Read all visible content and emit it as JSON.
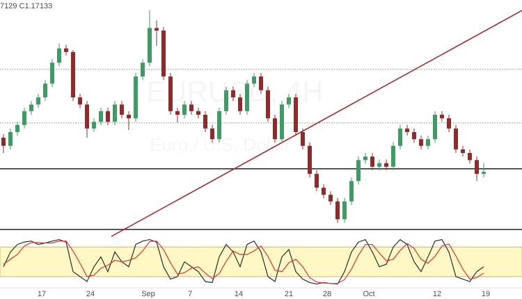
{
  "chart_data": {
    "type": "candlestick",
    "header": "7129 C1.17133",
    "watermark": "EURUSD, 4H",
    "watermark_sub": "Euro / U.S. Dollar",
    "ylim": [
      1.16,
      1.205
    ],
    "xlim": [
      -0.5,
      74.5
    ],
    "up_color": "#3f9a63",
    "down_color": "#8e2b2b",
    "levels": [
      {
        "value": 1.1719,
        "style": "solid",
        "color": "#222222"
      },
      {
        "value": 1.1914,
        "style": "dotted",
        "color": "#888888"
      },
      {
        "value": 1.1809,
        "style": "dotted",
        "color": "#888888"
      }
    ],
    "xticks": [
      {
        "value": 5.5,
        "label": "17"
      },
      {
        "value": 12.5,
        "label": "24"
      },
      {
        "value": 20.8,
        "label": "Sep"
      },
      {
        "value": 26.8,
        "label": "7"
      },
      {
        "value": 33.8,
        "label": "14"
      },
      {
        "value": 41,
        "label": "21"
      },
      {
        "value": 46.5,
        "label": "28"
      },
      {
        "value": 52.5,
        "label": "Oct"
      },
      {
        "value": 62.3,
        "label": "12"
      },
      {
        "value": 69.3,
        "label": "19"
      }
    ],
    "candles": [
      [
        1.178,
        1.1787,
        1.175,
        1.1764
      ],
      [
        1.1764,
        1.1798,
        1.1757,
        1.1791
      ],
      [
        1.1791,
        1.1812,
        1.1784,
        1.1805
      ],
      [
        1.1805,
        1.1839,
        1.1798,
        1.1832
      ],
      [
        1.1832,
        1.1852,
        1.1825,
        1.1845
      ],
      [
        1.1845,
        1.1866,
        1.1838,
        1.1859
      ],
      [
        1.1859,
        1.1893,
        1.1852,
        1.1886
      ],
      [
        1.1886,
        1.1934,
        1.1879,
        1.1927
      ],
      [
        1.1927,
        1.1965,
        1.192,
        1.1955
      ],
      [
        1.1955,
        1.1962,
        1.1941,
        1.1948
      ],
      [
        1.1948,
        1.1952,
        1.1852,
        1.1859
      ],
      [
        1.1859,
        1.1866,
        1.1838,
        1.1845
      ],
      [
        1.1845,
        1.1852,
        1.178,
        1.1798
      ],
      [
        1.1798,
        1.1818,
        1.1791,
        1.1811
      ],
      [
        1.1811,
        1.1839,
        1.1804,
        1.1832
      ],
      [
        1.1832,
        1.1839,
        1.1804,
        1.1811
      ],
      [
        1.1811,
        1.1852,
        1.1804,
        1.1845
      ],
      [
        1.1845,
        1.1852,
        1.1818,
        1.1825
      ],
      [
        1.1825,
        1.1832,
        1.1795,
        1.1818
      ],
      [
        1.1818,
        1.1907,
        1.1811,
        1.19
      ],
      [
        1.19,
        1.1934,
        1.1893,
        1.1927
      ],
      [
        1.1927,
        1.203,
        1.192,
        1.1995
      ],
      [
        1.1995,
        1.201,
        1.196,
        1.199
      ],
      [
        1.199,
        1.1997,
        1.1893,
        1.19
      ],
      [
        1.19,
        1.1907,
        1.1825,
        1.1832
      ],
      [
        1.1832,
        1.1839,
        1.181,
        1.1825
      ],
      [
        1.1825,
        1.1852,
        1.1818,
        1.1845
      ],
      [
        1.1845,
        1.1852,
        1.1825,
        1.1832
      ],
      [
        1.1832,
        1.1839,
        1.1818,
        1.1825
      ],
      [
        1.1825,
        1.1832,
        1.1791,
        1.1798
      ],
      [
        1.1798,
        1.1805,
        1.177,
        1.1777
      ],
      [
        1.1777,
        1.1839,
        1.177,
        1.1832
      ],
      [
        1.1832,
        1.188,
        1.1825,
        1.1873
      ],
      [
        1.1873,
        1.188,
        1.1852,
        1.1859
      ],
      [
        1.1859,
        1.1866,
        1.1825,
        1.1832
      ],
      [
        1.1832,
        1.1893,
        1.1825,
        1.1886
      ],
      [
        1.1886,
        1.1907,
        1.1879,
        1.19
      ],
      [
        1.19,
        1.1907,
        1.1866,
        1.1873
      ],
      [
        1.1873,
        1.188,
        1.1811,
        1.1818
      ],
      [
        1.1818,
        1.1825,
        1.177,
        1.1777
      ],
      [
        1.1777,
        1.1852,
        1.177,
        1.1845
      ],
      [
        1.1845,
        1.1866,
        1.1838,
        1.1859
      ],
      [
        1.1859,
        1.1866,
        1.1784,
        1.1791
      ],
      [
        1.1791,
        1.1798,
        1.1757,
        1.1764
      ],
      [
        1.1764,
        1.1771,
        1.1702,
        1.1709
      ],
      [
        1.1709,
        1.1716,
        1.1675,
        1.1682
      ],
      [
        1.1682,
        1.1689,
        1.1661,
        1.1668
      ],
      [
        1.1668,
        1.1675,
        1.1648,
        1.1655
      ],
      [
        1.1655,
        1.1662,
        1.1613,
        1.162
      ],
      [
        1.162,
        1.1662,
        1.1613,
        1.1655
      ],
      [
        1.1655,
        1.1702,
        1.1648,
        1.1695
      ],
      [
        1.1695,
        1.1743,
        1.1688,
        1.1736
      ],
      [
        1.1736,
        1.175,
        1.1729,
        1.1743
      ],
      [
        1.1743,
        1.175,
        1.1716,
        1.1723
      ],
      [
        1.1723,
        1.1737,
        1.1716,
        1.173
      ],
      [
        1.173,
        1.1737,
        1.1716,
        1.1723
      ],
      [
        1.1723,
        1.1771,
        1.1716,
        1.1764
      ],
      [
        1.1764,
        1.1805,
        1.1757,
        1.1798
      ],
      [
        1.1798,
        1.1805,
        1.1784,
        1.1791
      ],
      [
        1.1791,
        1.1798,
        1.177,
        1.1777
      ],
      [
        1.1777,
        1.1784,
        1.1757,
        1.1764
      ],
      [
        1.1764,
        1.1784,
        1.1757,
        1.1777
      ],
      [
        1.1777,
        1.1832,
        1.177,
        1.1825
      ],
      [
        1.1825,
        1.1832,
        1.1811,
        1.1818
      ],
      [
        1.1818,
        1.1825,
        1.1791,
        1.1798
      ],
      [
        1.1798,
        1.1805,
        1.175,
        1.1757
      ],
      [
        1.1757,
        1.1764,
        1.1743,
        1.175
      ],
      [
        1.175,
        1.1757,
        1.1729,
        1.1736
      ],
      [
        1.1736,
        1.1743,
        1.1695,
        1.1709
      ],
      [
        1.1709,
        1.173,
        1.1702,
        1.1713
      ]
    ],
    "oscillator": {
      "ylim": [
        0,
        100
      ],
      "band": [
        20,
        80
      ],
      "band_color": "#fff7c4",
      "series": [
        {
          "color": "#2b2b2b",
          "values": [
            40,
            70,
            85,
            90,
            92,
            85,
            88,
            92,
            95,
            90,
            30,
            20,
            10,
            40,
            60,
            30,
            70,
            50,
            40,
            85,
            92,
            95,
            90,
            40,
            15,
            20,
            50,
            40,
            30,
            10,
            8,
            60,
            85,
            70,
            40,
            85,
            92,
            70,
            20,
            10,
            60,
            75,
            30,
            15,
            8,
            5,
            8,
            6,
            5,
            30,
            70,
            90,
            95,
            70,
            40,
            45,
            80,
            95,
            85,
            50,
            30,
            60,
            92,
            95,
            70,
            20,
            15,
            10,
            30,
            40
          ]
        },
        {
          "color": "#e0342c",
          "values": [
            45,
            55,
            65,
            82,
            89,
            89,
            88,
            88,
            92,
            92,
            72,
            47,
            20,
            23,
            37,
            43,
            53,
            50,
            53,
            58,
            72,
            91,
            92,
            75,
            48,
            25,
            28,
            37,
            40,
            27,
            16,
            26,
            51,
            72,
            65,
            65,
            72,
            82,
            61,
            33,
            30,
            48,
            55,
            40,
            18,
            9,
            7,
            6,
            6,
            14,
            35,
            63,
            85,
            85,
            68,
            52,
            55,
            73,
            87,
            77,
            55,
            47,
            61,
            82,
            86,
            62,
            35,
            15,
            18,
            27
          ]
        }
      ]
    }
  }
}
